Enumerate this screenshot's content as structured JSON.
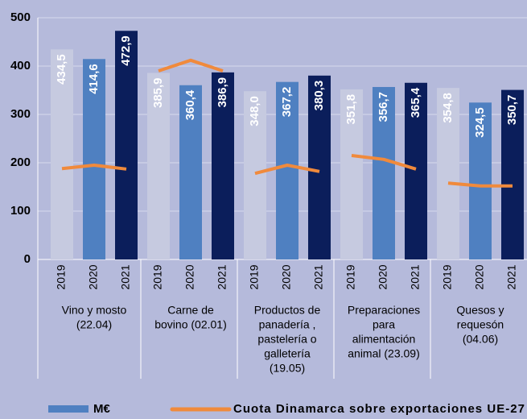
{
  "chart_data": {
    "type": "bar",
    "ylim": [
      0,
      500
    ],
    "yticks": [
      0,
      100,
      200,
      300,
      400,
      500
    ],
    "year_colors": [
      "#c6cae0",
      "#4f80c1",
      "#0b1e5b"
    ],
    "bar_name": "M€",
    "bar_legend_color": "#4f80c1",
    "line_name": "Cuota Dinamarca sobre exportaciones UE-27",
    "line_color": "#f08a3c",
    "groups": [
      {
        "label": [
          "Vino y mosto",
          "(22.04)"
        ],
        "categories": [
          "2019",
          "2020",
          "2021"
        ],
        "values": [
          434.5,
          414.6,
          472.9
        ],
        "value_labels": [
          "434,5",
          "414,6",
          "472,9"
        ],
        "line_values": [
          188,
          195,
          187
        ]
      },
      {
        "label": [
          "Carne de",
          "bovino  (02.01)"
        ],
        "categories": [
          "2019",
          "2020",
          "2021"
        ],
        "values": [
          385.9,
          360.4,
          386.9
        ],
        "value_labels": [
          "385,9",
          "360,4",
          "386,9"
        ],
        "line_values": [
          390,
          412,
          390
        ]
      },
      {
        "label": [
          "Productos de",
          "panadería ,",
          "pastelería o",
          "galletería",
          "(19.05)"
        ],
        "categories": [
          "2019",
          "2020",
          "2021"
        ],
        "values": [
          348.0,
          367.2,
          380.3
        ],
        "value_labels": [
          "348,0",
          "367,2",
          "380,3"
        ],
        "line_values": [
          178,
          195,
          182
        ]
      },
      {
        "label": [
          "Preparaciones",
          "para",
          "alimentación",
          "animal  (23.09)"
        ],
        "categories": [
          "2019",
          "2020",
          "2021"
        ],
        "values": [
          351.8,
          356.7,
          365.4
        ],
        "value_labels": [
          "351,8",
          "356,7",
          "365,4"
        ],
        "line_values": [
          215,
          207,
          187
        ]
      },
      {
        "label": [
          "Quesos y",
          "requesón",
          "(04.06)"
        ],
        "categories": [
          "2019",
          "2020",
          "2021"
        ],
        "values": [
          354.8,
          324.5,
          350.7
        ],
        "value_labels": [
          "354,8",
          "324,5",
          "350,7"
        ],
        "line_values": [
          158,
          152,
          152
        ]
      }
    ]
  }
}
